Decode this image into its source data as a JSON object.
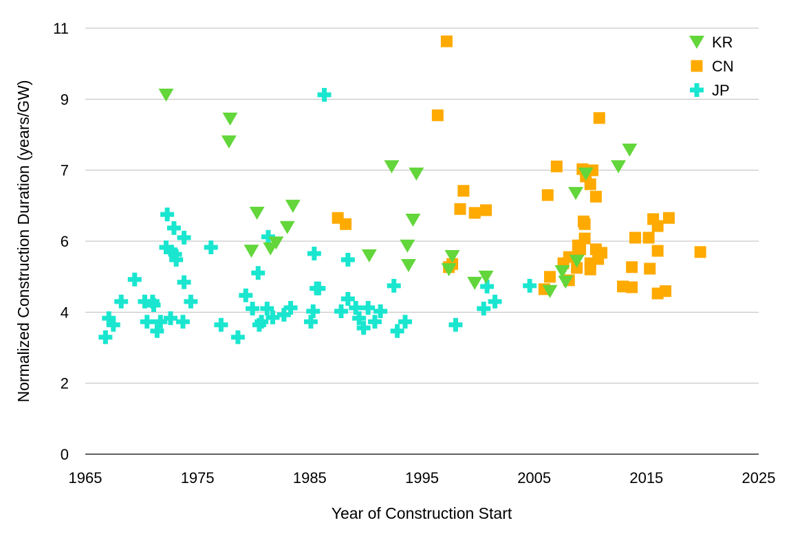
{
  "chart_data": {
    "type": "scatter",
    "title": "",
    "xlabel": "Year of Construction Start",
    "ylabel": "Normalized Construction Duration (years/GW)",
    "xlim": [
      1965,
      2025
    ],
    "ylim": [
      0,
      11
    ],
    "xticks": [
      1965,
      1975,
      1985,
      1995,
      2005,
      2015,
      2025
    ],
    "xtick_labels": [
      "1965",
      "1975",
      "1985",
      "1995",
      "2005",
      "2015",
      "2025"
    ],
    "yticks": [
      0,
      1.8333,
      3.6667,
      5.5,
      7.3333,
      9.1667,
      11
    ],
    "ytick_labels": [
      "0",
      "2",
      "4",
      "6",
      "7",
      "9",
      "11"
    ],
    "grid": "horizontal",
    "legend_position": "top-right",
    "series": [
      {
        "name": "KR",
        "marker": "triangle-down",
        "color": "#62d63a",
        "x": [
          1972.2,
          1977.9,
          1977.8,
          1980.3,
          1983.5,
          1983.0,
          1979.8,
          1981.5,
          1982.0,
          1990.3,
          1992.3,
          1993.8,
          1994.5,
          1994.2,
          1993.7,
          1997.4,
          1997.7,
          1999.7,
          2000.7,
          2006.4,
          2007.5,
          2007.8,
          2008.8,
          2008.7,
          2009.6,
          2012.5,
          2013.5
        ],
        "y": [
          9.28,
          8.66,
          8.07,
          6.23,
          6.41,
          5.86,
          5.25,
          5.31,
          5.46,
          5.13,
          7.43,
          4.88,
          7.24,
          6.05,
          5.38,
          4.77,
          5.11,
          4.42,
          4.58,
          4.21,
          4.72,
          4.45,
          4.99,
          6.74,
          7.24,
          7.43,
          7.86
        ]
      },
      {
        "name": "CN",
        "marker": "square",
        "color": "#ffaa00",
        "x": [
          1997.2,
          1996.4,
          2010.8,
          2007.0,
          2009.3,
          2010.2,
          2009.6,
          2010.0,
          2006.2,
          2010.5,
          1998.7,
          1998.4,
          1999.7,
          2000.7,
          1987.5,
          1988.2,
          2009.4,
          2009.5,
          2009.5,
          2008.9,
          2009.1,
          2010.5,
          2011.0,
          2010.7,
          2010.0,
          2010.0,
          2008.8,
          2007.6,
          2008.1,
          2006.4,
          2005.9,
          2008.1,
          2014.0,
          2015.2,
          2015.6,
          2016.0,
          2017.0,
          2016.0,
          2019.8,
          2013.7,
          2015.3,
          2012.9,
          2013.7,
          2016.0,
          2016.7,
          1997.4,
          1997.7
        ],
        "y": [
          10.66,
          8.75,
          8.68,
          7.43,
          7.36,
          7.33,
          7.17,
          6.97,
          6.69,
          6.65,
          6.8,
          6.33,
          6.23,
          6.3,
          6.1,
          5.94,
          6.01,
          5.94,
          5.57,
          5.39,
          5.29,
          5.29,
          5.2,
          5.04,
          4.93,
          4.77,
          4.81,
          4.93,
          5.09,
          4.58,
          4.26,
          4.49,
          5.59,
          5.59,
          6.07,
          5.89,
          6.1,
          5.25,
          5.22,
          4.83,
          4.79,
          4.33,
          4.31,
          4.15,
          4.21,
          4.83,
          4.91
        ]
      },
      {
        "name": "JP",
        "marker": "plus",
        "color": "#1ae6cf",
        "x": [
          1972.3,
          1972.9,
          1973.8,
          1972.2,
          1972.7,
          1973.0,
          1973.1,
          1976.2,
          1981.3,
          1969.4,
          1973.8,
          1980.4,
          1968.2,
          1974.4,
          1970.3,
          1971.0,
          1971.1,
          1967.1,
          1967.5,
          1966.8,
          1970.5,
          1971.7,
          1971.4,
          1972.6,
          1973.7,
          1977.1,
          1978.6,
          1979.3,
          1979.9,
          1981.2,
          1981.7,
          1980.5,
          1980.7,
          1982.7,
          1983.3,
          1985.4,
          1988.4,
          1985.6,
          1985.8,
          1985.3,
          1985.1,
          1987.8,
          1988.4,
          1989.1,
          1989.4,
          1989.8,
          1990.2,
          1990.8,
          1991.3,
          1992.5,
          1992.8,
          1993.5,
          1998.0,
          2000.8,
          2000.5,
          2001.5,
          2004.6,
          1986.3
        ],
        "y": [
          6.19,
          5.84,
          5.59,
          5.34,
          5.23,
          5.16,
          5.02,
          5.34,
          5.61,
          4.51,
          4.44,
          4.68,
          3.94,
          3.94,
          3.94,
          3.94,
          3.85,
          3.51,
          3.34,
          3.02,
          3.42,
          3.42,
          3.18,
          3.51,
          3.42,
          3.34,
          3.02,
          4.1,
          3.76,
          3.76,
          3.53,
          3.34,
          3.42,
          3.6,
          3.78,
          5.18,
          5.02,
          4.28,
          4.28,
          3.69,
          3.42,
          3.69,
          4.01,
          3.78,
          3.51,
          3.26,
          3.78,
          3.42,
          3.69,
          4.35,
          3.18,
          3.42,
          3.34,
          4.33,
          3.76,
          3.94,
          4.35,
          9.28
        ]
      }
    ]
  }
}
